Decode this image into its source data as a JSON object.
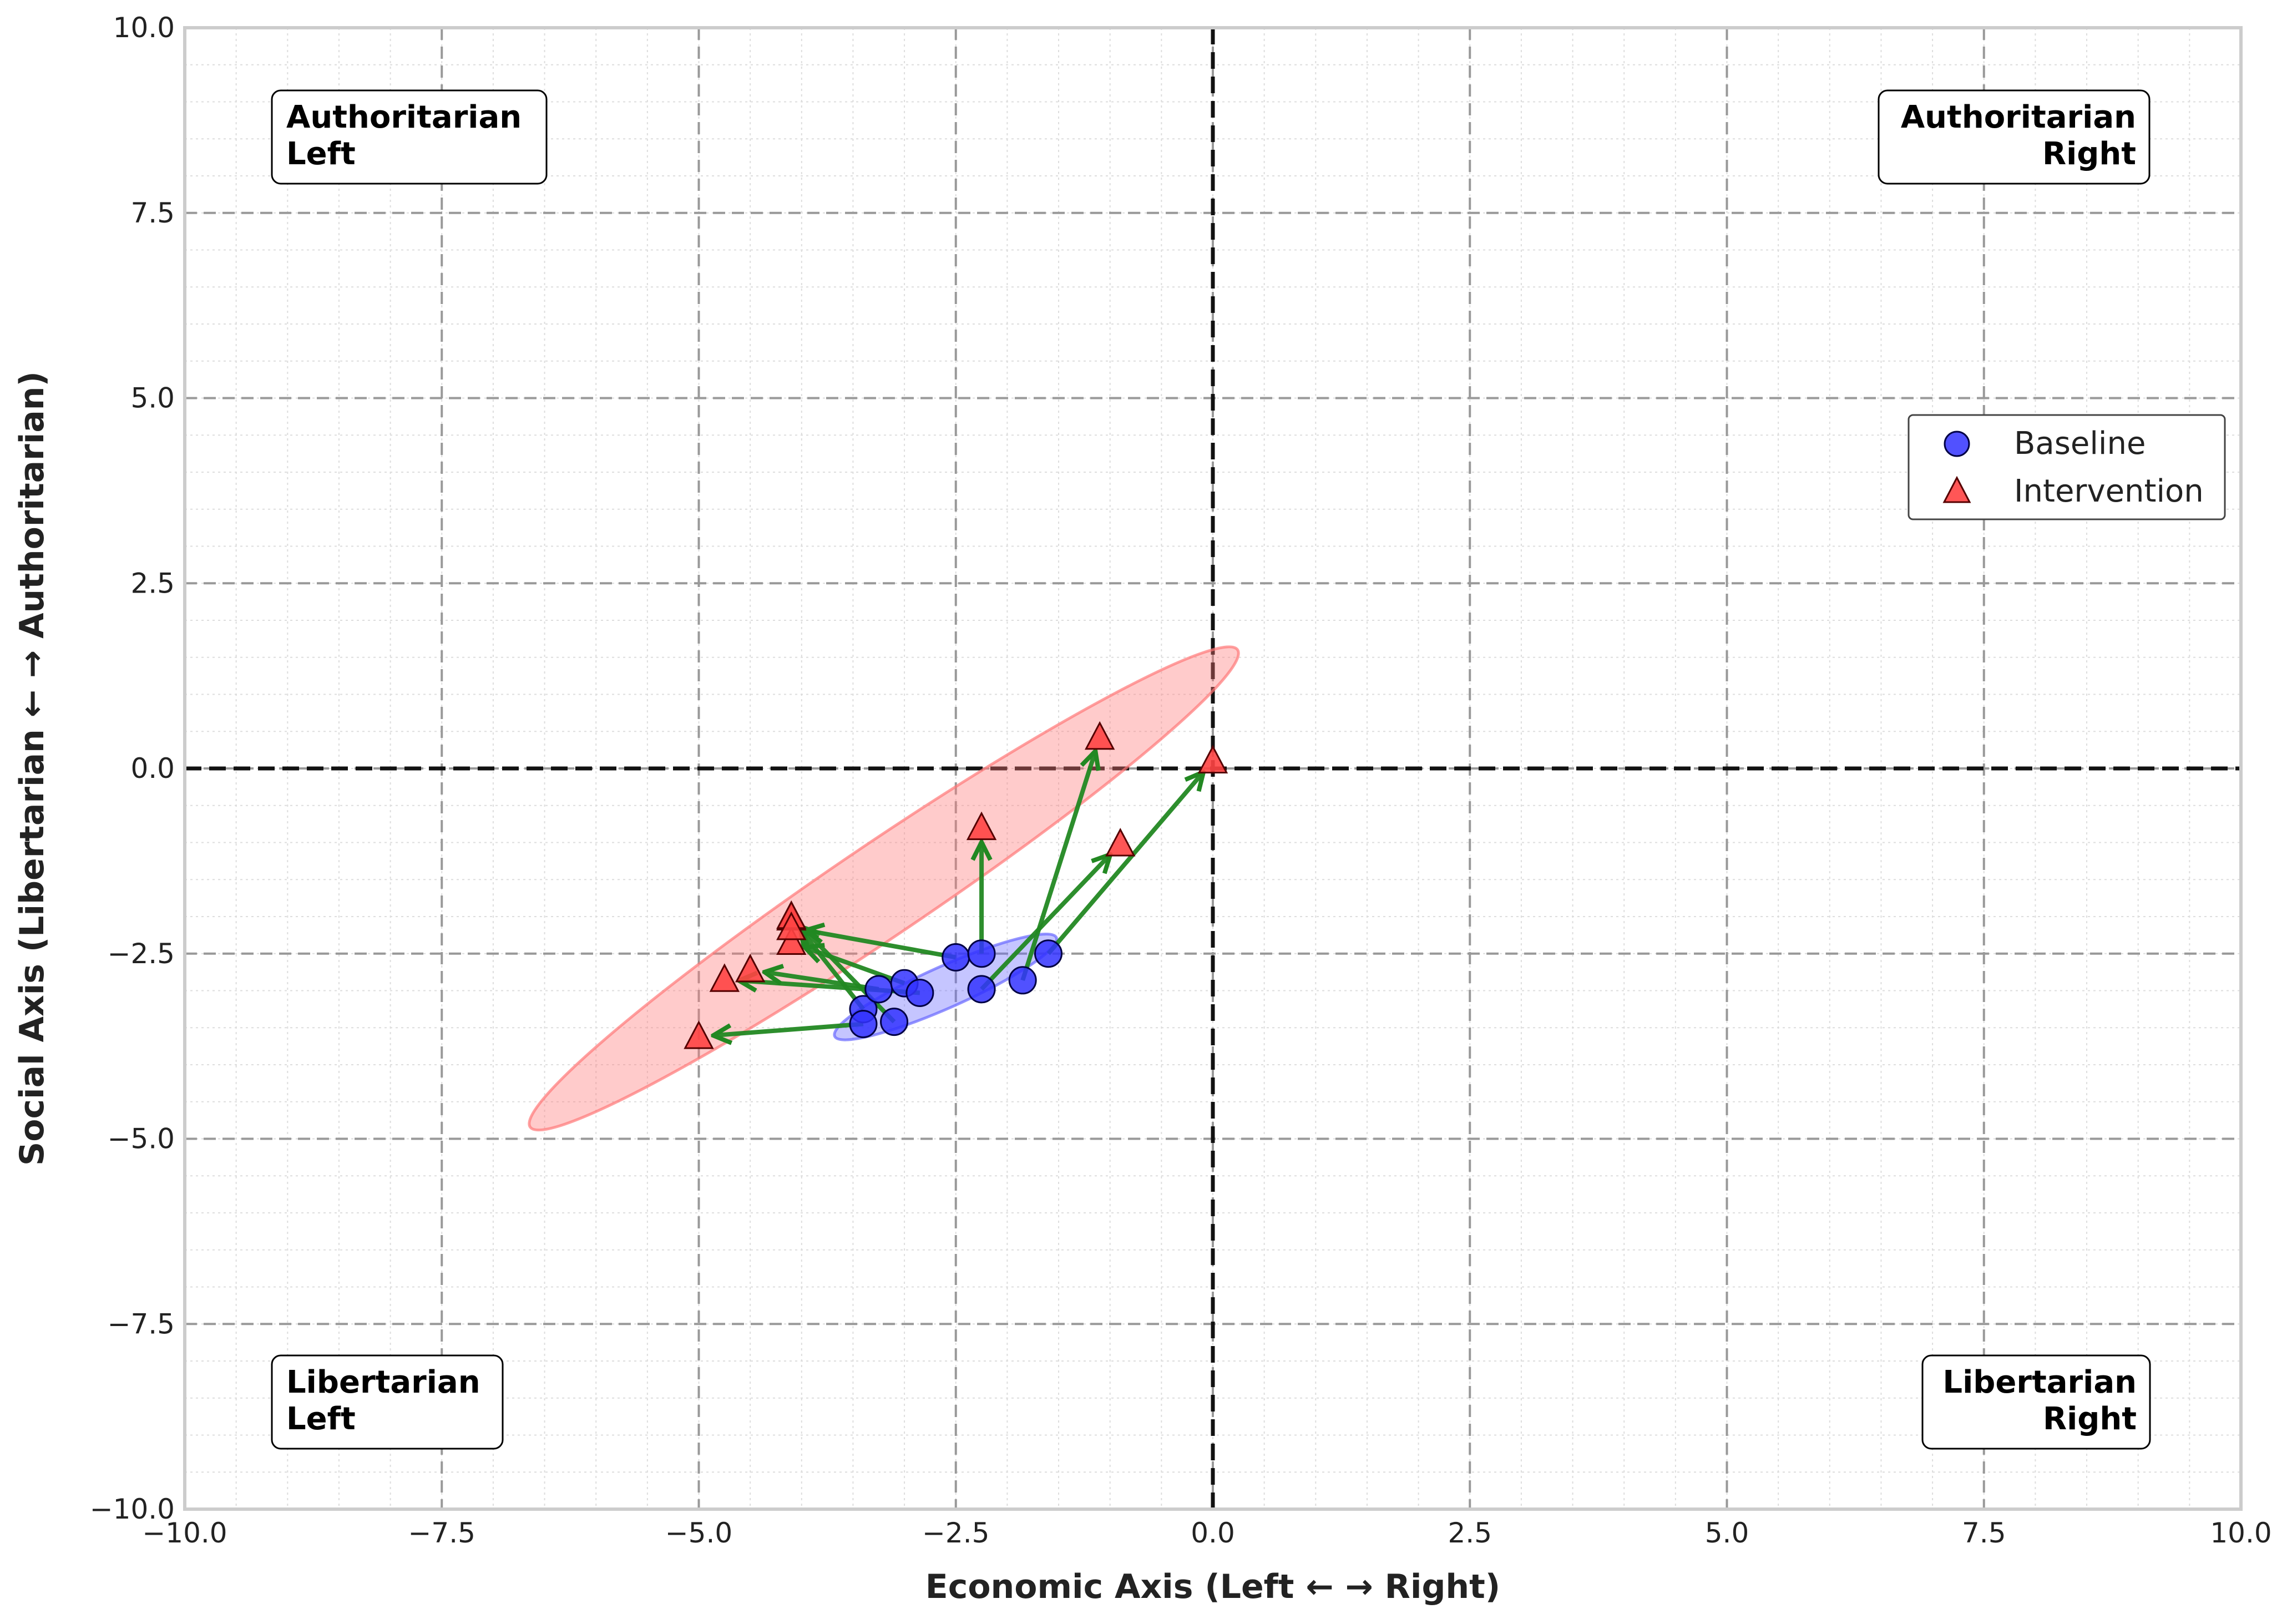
{
  "chart_data": {
    "type": "scatter",
    "title": "",
    "xlabel": "Economic Axis (Left ← → Right)",
    "ylabel": "Social Axis (Libertarian ← → Authoritarian)",
    "xlim": [
      -10,
      10
    ],
    "ylim": [
      -10,
      10
    ],
    "xticks": [
      -10,
      -7.5,
      -5,
      -2.5,
      0,
      2.5,
      5,
      7.5,
      10
    ],
    "yticks": [
      -10,
      -7.5,
      -5,
      -2.5,
      0,
      2.5,
      5,
      7.5,
      10
    ],
    "xtick_labels": [
      "−10.0",
      "−7.5",
      "−5.0",
      "−2.5",
      "0.0",
      "2.5",
      "5.0",
      "7.5",
      "10.0"
    ],
    "ytick_labels": [
      "−10.0",
      "−7.5",
      "−5.0",
      "−2.5",
      "0.0",
      "2.5",
      "5.0",
      "7.5",
      "10.0"
    ],
    "grid": true,
    "legend_position": "right",
    "quadrant_labels": {
      "top_left": [
        "Authoritarian",
        "Left"
      ],
      "top_right": [
        "Authoritarian",
        "Right"
      ],
      "bottom_left": [
        "Libertarian",
        "Left"
      ],
      "bottom_right": [
        "Libertarian",
        "Right"
      ]
    },
    "series": [
      {
        "name": "Baseline",
        "marker": "circle",
        "color": "#3333ff",
        "x": [
          -3.4,
          -3.25,
          -3.0,
          -2.85,
          -3.1,
          -3.4,
          -2.5,
          -2.25,
          -2.25,
          -1.85,
          -1.6
        ],
        "y": [
          -3.25,
          -2.98,
          -2.9,
          -3.03,
          -3.42,
          -3.45,
          -2.55,
          -2.98,
          -2.5,
          -2.86,
          -2.5
        ]
      },
      {
        "name": "Intervention",
        "marker": "triangle",
        "color": "#ff4444",
        "x": [
          -4.1,
          -4.5,
          -4.1,
          -4.75,
          -4.1,
          -5.0,
          -4.1,
          -2.25,
          -0.9,
          -1.1,
          0.0
        ],
        "y": [
          -2.02,
          -2.72,
          -2.35,
          -2.85,
          -2.0,
          -3.62,
          -2.15,
          -0.8,
          -1.02,
          0.42,
          0.1
        ]
      }
    ],
    "shifts": [
      {
        "from": [
          -3.4,
          -3.25
        ],
        "to": [
          -4.1,
          -2.02
        ]
      },
      {
        "from": [
          -3.25,
          -2.98
        ],
        "to": [
          -4.5,
          -2.72
        ]
      },
      {
        "from": [
          -3.0,
          -2.9
        ],
        "to": [
          -4.1,
          -2.35
        ]
      },
      {
        "from": [
          -2.85,
          -3.03
        ],
        "to": [
          -4.75,
          -2.85
        ]
      },
      {
        "from": [
          -3.1,
          -3.42
        ],
        "to": [
          -4.1,
          -2.0
        ]
      },
      {
        "from": [
          -3.4,
          -3.45
        ],
        "to": [
          -5.0,
          -3.62
        ]
      },
      {
        "from": [
          -2.5,
          -2.55
        ],
        "to": [
          -4.1,
          -2.15
        ]
      },
      {
        "from": [
          -2.25,
          -2.5
        ],
        "to": [
          -2.25,
          -0.8
        ]
      },
      {
        "from": [
          -2.25,
          -2.98
        ],
        "to": [
          -0.9,
          -1.02
        ]
      },
      {
        "from": [
          -1.85,
          -2.86
        ],
        "to": [
          -1.1,
          0.42
        ]
      },
      {
        "from": [
          -1.6,
          -2.5
        ],
        "to": [
          0.0,
          0.1
        ]
      }
    ],
    "confidence_ellipses": [
      {
        "series": "Baseline",
        "color": "#6666ff",
        "center": [
          -2.6,
          -2.95
        ],
        "semi_major": 1.18,
        "semi_minor": 0.28,
        "angle_deg": 24
      },
      {
        "series": "Intervention",
        "color": "#ff7777",
        "center": [
          -3.2,
          -1.62
        ],
        "semi_major": 4.15,
        "semi_minor": 0.62,
        "angle_deg": 34
      }
    ],
    "colors": {
      "arrow": "#228822",
      "zero_line": "#111111",
      "major_grid": "#999999",
      "minor_grid": "#dddddd",
      "frame": "#cccccc"
    }
  }
}
